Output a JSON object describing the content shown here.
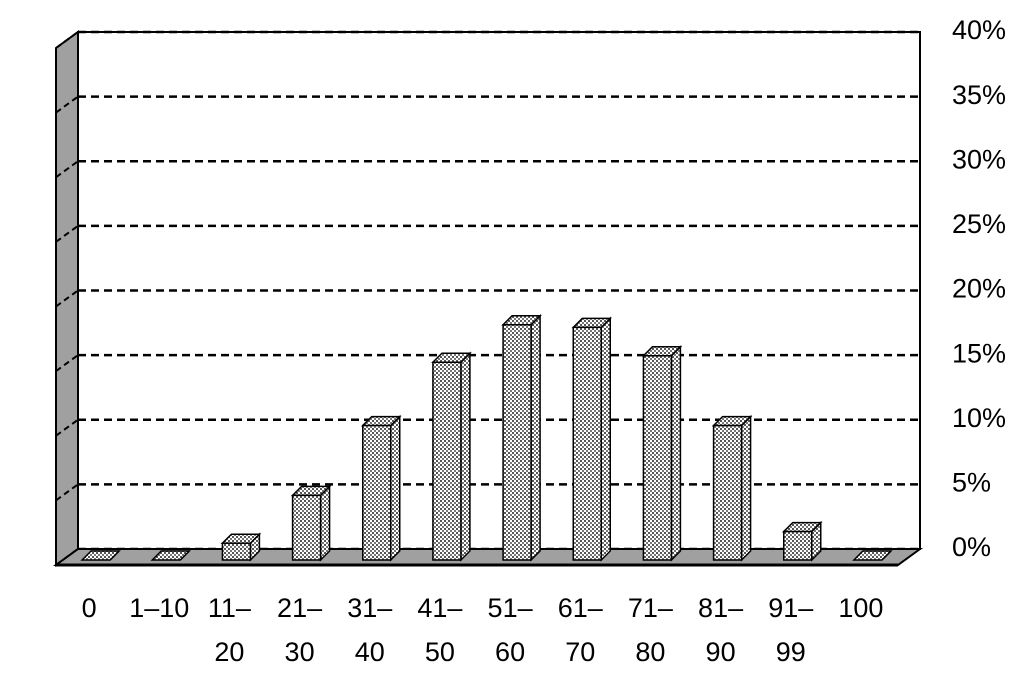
{
  "chart_data": {
    "type": "bar3d",
    "categories": [
      "0",
      "1–10",
      "11–\n20",
      "21–\n30",
      "31–\n40",
      "41–\n50",
      "51–\n60",
      "61–\n70",
      "71–\n80",
      "81–\n90",
      "91–\n99",
      "100"
    ],
    "values": [
      0,
      0,
      1.3,
      5,
      10.4,
      15.3,
      18.2,
      18,
      15.8,
      10.4,
      2.2,
      0
    ],
    "ylim": [
      0,
      40
    ],
    "yticks": [
      {
        "value": 0,
        "label": "0%"
      },
      {
        "value": 5,
        "label": "5%"
      },
      {
        "value": 10,
        "label": "10%"
      },
      {
        "value": 15,
        "label": "15%"
      },
      {
        "value": 20,
        "label": "20%"
      },
      {
        "value": 25,
        "label": "25%"
      },
      {
        "value": 30,
        "label": "30%"
      },
      {
        "value": 35,
        "label": "35%"
      },
      {
        "value": 40,
        "label": "40%"
      }
    ],
    "yaxis_side": "right",
    "grid": true,
    "color": "#b8b8b8"
  }
}
